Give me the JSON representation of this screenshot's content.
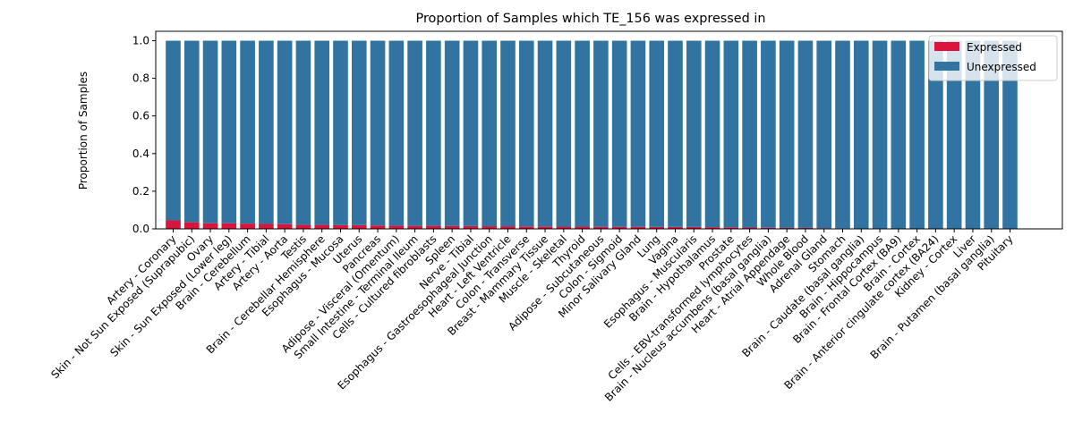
{
  "chart_data": {
    "type": "bar",
    "stacked": true,
    "title": "Proportion of Samples which TE_156 was expressed in",
    "xlabel": "",
    "ylabel": "Proportion of Samples",
    "ylim": [
      0,
      1.05
    ],
    "yticks": [
      "0.0",
      "0.2",
      "0.4",
      "0.6",
      "0.8",
      "1.0"
    ],
    "grid": false,
    "legend_position": "top-right",
    "categories": [
      "Artery - Coronary",
      "Skin - Not Sun Exposed (Suprapubic)",
      "Ovary",
      "Skin - Sun Exposed (Lower leg)",
      "Brain - Cerebellum",
      "Artery - Tibial",
      "Artery - Aorta",
      "Testis",
      "Brain - Cerebellar Hemisphere",
      "Esophagus - Mucosa",
      "Uterus",
      "Pancreas",
      "Adipose - Visceral (Omentum)",
      "Small Intestine - Terminal Ileum",
      "Cells - Cultured fibroblasts",
      "Spleen",
      "Nerve - Tibial",
      "Esophagus - Gastroesophageal Junction",
      "Heart - Left Ventricle",
      "Colon - Transverse",
      "Breast - Mammary Tissue",
      "Muscle - Skeletal",
      "Thyroid",
      "Adipose - Subcutaneous",
      "Colon - Sigmoid",
      "Minor Salivary Gland",
      "Lung",
      "Vagina",
      "Esophagus - Muscularis",
      "Brain - Hypothalamus",
      "Prostate",
      "Cells - EBV-transformed lymphocytes",
      "Brain - Nucleus accumbens (basal ganglia)",
      "Heart - Atrial Appendage",
      "Whole Blood",
      "Adrenal Gland",
      "Stomach",
      "Brain - Caudate (basal ganglia)",
      "Brain - Hippocampus",
      "Brain - Frontal Cortex (BA9)",
      "Brain - Cortex",
      "Brain - Anterior cingulate cortex (BA24)",
      "Kidney - Cortex",
      "Liver",
      "Brain - Putamen (basal ganglia)",
      "Pituitary"
    ],
    "series": [
      {
        "name": "Expressed",
        "color": "#dc143c",
        "values": [
          0.045,
          0.035,
          0.03,
          0.03,
          0.028,
          0.026,
          0.025,
          0.022,
          0.021,
          0.02,
          0.02,
          0.018,
          0.017,
          0.016,
          0.016,
          0.015,
          0.015,
          0.014,
          0.014,
          0.013,
          0.013,
          0.012,
          0.012,
          0.011,
          0.011,
          0.011,
          0.01,
          0.01,
          0.01,
          0.009,
          0.008,
          0.007,
          0.006,
          0.005,
          0.005,
          0.004,
          0.003,
          0,
          0,
          0,
          0,
          0,
          0,
          0,
          0,
          0
        ]
      },
      {
        "name": "Unexpressed",
        "color": "#3274a1",
        "values": [
          0.955,
          0.965,
          0.97,
          0.97,
          0.972,
          0.974,
          0.975,
          0.978,
          0.979,
          0.98,
          0.98,
          0.982,
          0.983,
          0.984,
          0.984,
          0.985,
          0.985,
          0.986,
          0.986,
          0.987,
          0.987,
          0.988,
          0.988,
          0.989,
          0.989,
          0.989,
          0.99,
          0.99,
          0.99,
          0.991,
          0.992,
          0.993,
          0.994,
          0.995,
          0.995,
          0.996,
          0.997,
          1,
          1,
          1,
          1,
          1,
          1,
          1,
          1,
          1
        ]
      }
    ]
  }
}
